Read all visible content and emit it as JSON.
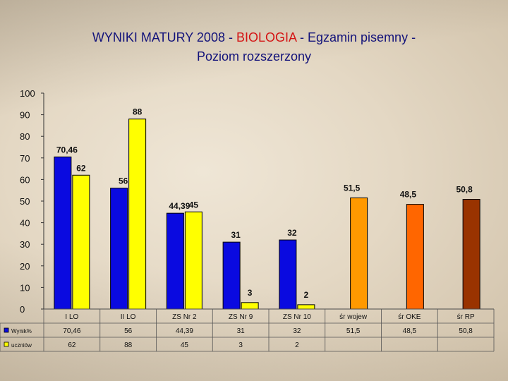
{
  "title": {
    "part1": "WYNIKI MATURY 2008 - ",
    "subject": "BIOLOGIA",
    "part2": " - Egzamin pisemny -",
    "line2": "Poziom rozszerzony"
  },
  "colors": {
    "blue": "#0a0ae0",
    "yellow": "#ffff00",
    "wojew": "#ff9900",
    "oke": "#ff6600",
    "rp": "#993300",
    "accent_red": "#d41414",
    "title_blue": "#12127a"
  },
  "chart_data": {
    "type": "bar",
    "title": "WYNIKI MATURY 2008 - BIOLOGIA - Egzamin pisemny - Poziom rozszerzony",
    "categories": [
      "I LO",
      "II LO",
      "ZS Nr 2",
      "ZS Nr 9",
      "ZS Nr 10",
      "śr wojew",
      "śr OKE",
      "śr RP"
    ],
    "series": [
      {
        "name": "Wynik%",
        "values": [
          70.46,
          56,
          44.39,
          31,
          32,
          51.5,
          48.5,
          50.8
        ]
      },
      {
        "name": "uczniów",
        "values": [
          62,
          88,
          45,
          3,
          2,
          null,
          null,
          null
        ]
      }
    ],
    "data_labels": [
      [
        "70,46",
        "56",
        "44,39",
        "31",
        "32",
        "51,5",
        "48,5",
        "50,8"
      ],
      [
        "62",
        "88",
        "45",
        "3",
        "2",
        "",
        "",
        ""
      ]
    ],
    "table_values": [
      [
        "70,46",
        "56",
        "44,39",
        "31",
        "32",
        "51,5",
        "48,5",
        "50,8"
      ],
      [
        "62",
        "88",
        "45",
        "3",
        "2",
        "",
        "",
        ""
      ]
    ],
    "bar_colors": [
      [
        "#0a0ae0",
        "#0a0ae0",
        "#0a0ae0",
        "#0a0ae0",
        "#0a0ae0",
        "#ff9900",
        "#ff6600",
        "#993300"
      ],
      [
        "#ffff00",
        "#ffff00",
        "#ffff00",
        "#ffff00",
        "#ffff00",
        "",
        "",
        ""
      ]
    ],
    "ylim": [
      0,
      100
    ],
    "yticks": [
      0,
      10,
      20,
      30,
      40,
      50,
      60,
      70,
      80,
      90,
      100
    ],
    "grid": false,
    "legend": "data table below chart"
  }
}
